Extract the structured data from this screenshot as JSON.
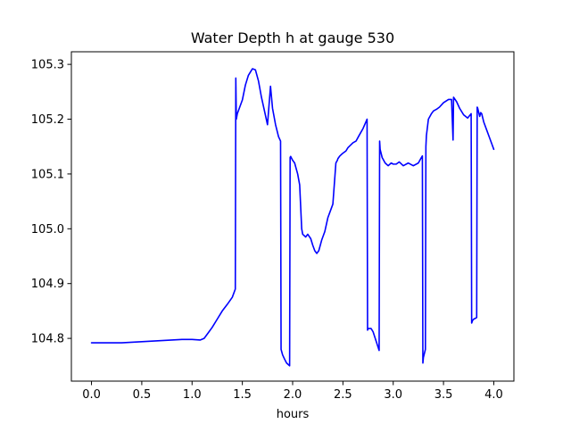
{
  "chart_data": {
    "type": "line",
    "title": "Water Depth h at gauge 530",
    "xlabel": "hours",
    "ylabel": "",
    "xlim": [
      -0.2,
      4.2
    ],
    "ylim": [
      104.722,
      105.323
    ],
    "xticks": [
      0.0,
      0.5,
      1.0,
      1.5,
      2.0,
      2.5,
      3.0,
      3.5,
      4.0
    ],
    "xtick_labels": [
      "0.0",
      "0.5",
      "1.0",
      "1.5",
      "2.0",
      "2.5",
      "3.0",
      "3.5",
      "4.0"
    ],
    "yticks": [
      104.8,
      104.9,
      105.0,
      105.1,
      105.2,
      105.3
    ],
    "ytick_labels": [
      "104.8",
      "104.9",
      "105.0",
      "105.1",
      "105.2",
      "105.3"
    ],
    "grid": false,
    "legend": "none",
    "series": [
      {
        "color": "#0000ff",
        "x": [
          0.0,
          0.3,
          0.6,
          0.7,
          0.8,
          0.9,
          1.0,
          1.08,
          1.12,
          1.16,
          1.2,
          1.25,
          1.3,
          1.35,
          1.4,
          1.43,
          1.435,
          1.44,
          1.445,
          1.45,
          1.5,
          1.53,
          1.56,
          1.6,
          1.63,
          1.66,
          1.69,
          1.72,
          1.75,
          1.78,
          1.79,
          1.8,
          1.83,
          1.86,
          1.88,
          1.885,
          1.9,
          1.92,
          1.94,
          1.97,
          1.975,
          1.98,
          2.0,
          2.02,
          2.035,
          2.05,
          2.07,
          2.09,
          2.1,
          2.13,
          2.15,
          2.18,
          2.2,
          2.22,
          2.24,
          2.26,
          2.29,
          2.32,
          2.35,
          2.38,
          2.4,
          2.43,
          2.445,
          2.45,
          2.47,
          2.5,
          2.53,
          2.55,
          2.6,
          2.63,
          2.66,
          2.7,
          2.74,
          2.745,
          2.75,
          2.78,
          2.8,
          2.83,
          2.86,
          2.865,
          2.87,
          2.89,
          2.92,
          2.95,
          2.98,
          3.0,
          3.03,
          3.06,
          3.1,
          3.15,
          3.2,
          3.25,
          3.28,
          3.29,
          3.295,
          3.3,
          3.32,
          3.325,
          3.33,
          3.35,
          3.38,
          3.4,
          3.43,
          3.46,
          3.5,
          3.55,
          3.58,
          3.595,
          3.6,
          3.63,
          3.66,
          3.7,
          3.74,
          3.775,
          3.78,
          3.79,
          3.8,
          3.83,
          3.835,
          3.84,
          3.86,
          3.87,
          3.88,
          3.9,
          3.93,
          3.96,
          3.98,
          4.0
        ],
        "y": [
          104.792,
          104.792,
          104.795,
          104.796,
          104.797,
          104.798,
          104.798,
          104.797,
          104.8,
          104.81,
          104.82,
          104.835,
          104.85,
          104.862,
          104.875,
          104.89,
          105.275,
          105.2,
          105.205,
          105.21,
          105.235,
          105.262,
          105.28,
          105.292,
          105.29,
          105.27,
          105.24,
          105.215,
          105.19,
          105.26,
          105.24,
          105.22,
          105.19,
          105.168,
          105.16,
          104.78,
          104.77,
          104.762,
          104.755,
          104.75,
          105.13,
          105.132,
          105.125,
          105.12,
          105.11,
          105.1,
          105.08,
          105.0,
          104.99,
          104.985,
          104.99,
          104.982,
          104.97,
          104.96,
          104.955,
          104.96,
          104.98,
          104.995,
          105.02,
          105.035,
          105.045,
          105.12,
          105.125,
          105.128,
          105.133,
          105.138,
          105.142,
          105.148,
          105.157,
          105.16,
          105.17,
          105.183,
          105.2,
          104.815,
          104.818,
          104.818,
          104.812,
          104.795,
          104.778,
          105.16,
          105.145,
          105.13,
          105.12,
          105.115,
          105.12,
          105.118,
          105.118,
          105.122,
          105.115,
          105.12,
          105.115,
          105.12,
          105.13,
          105.133,
          104.755,
          104.765,
          104.78,
          105.15,
          105.17,
          105.2,
          105.21,
          105.215,
          105.218,
          105.222,
          105.23,
          105.236,
          105.236,
          105.162,
          105.24,
          105.232,
          105.22,
          105.208,
          105.202,
          105.21,
          104.828,
          104.833,
          104.835,
          104.838,
          105.222,
          105.22,
          105.205,
          105.212,
          105.21,
          105.195,
          105.18,
          105.165,
          105.155,
          105.145
        ]
      }
    ]
  }
}
